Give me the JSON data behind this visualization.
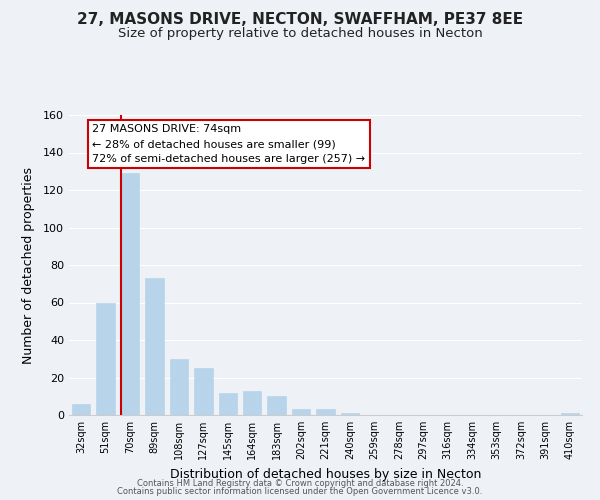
{
  "title": "27, MASONS DRIVE, NECTON, SWAFFHAM, PE37 8EE",
  "subtitle": "Size of property relative to detached houses in Necton",
  "xlabel": "Distribution of detached houses by size in Necton",
  "ylabel": "Number of detached properties",
  "bins": [
    "32sqm",
    "51sqm",
    "70sqm",
    "89sqm",
    "108sqm",
    "127sqm",
    "145sqm",
    "164sqm",
    "183sqm",
    "202sqm",
    "221sqm",
    "240sqm",
    "259sqm",
    "278sqm",
    "297sqm",
    "316sqm",
    "334sqm",
    "353sqm",
    "372sqm",
    "391sqm",
    "410sqm"
  ],
  "values": [
    6,
    60,
    129,
    73,
    30,
    25,
    12,
    13,
    10,
    3,
    3,
    1,
    0,
    0,
    0,
    0,
    0,
    0,
    0,
    0,
    1
  ],
  "bar_color": "#b8d4ea",
  "bar_edgecolor": "#b8d4ea",
  "redline_bin_index": 2,
  "ylim": [
    0,
    160
  ],
  "yticks": [
    0,
    20,
    40,
    60,
    80,
    100,
    120,
    140,
    160
  ],
  "annotation_line1": "27 MASONS DRIVE: 74sqm",
  "annotation_line2": "← 28% of detached houses are smaller (99)",
  "annotation_line3": "72% of semi-detached houses are larger (257) →",
  "annotation_box_color": "#ffffff",
  "annotation_box_edgecolor": "#cc0000",
  "background_color": "#eef2f7",
  "grid_color": "#ffffff",
  "footer_line1": "Contains HM Land Registry data © Crown copyright and database right 2024.",
  "footer_line2": "Contains public sector information licensed under the Open Government Licence v3.0.",
  "title_fontsize": 11,
  "subtitle_fontsize": 9.5,
  "xlabel_fontsize": 9,
  "ylabel_fontsize": 9,
  "annotation_fontsize": 8,
  "footer_fontsize": 6
}
